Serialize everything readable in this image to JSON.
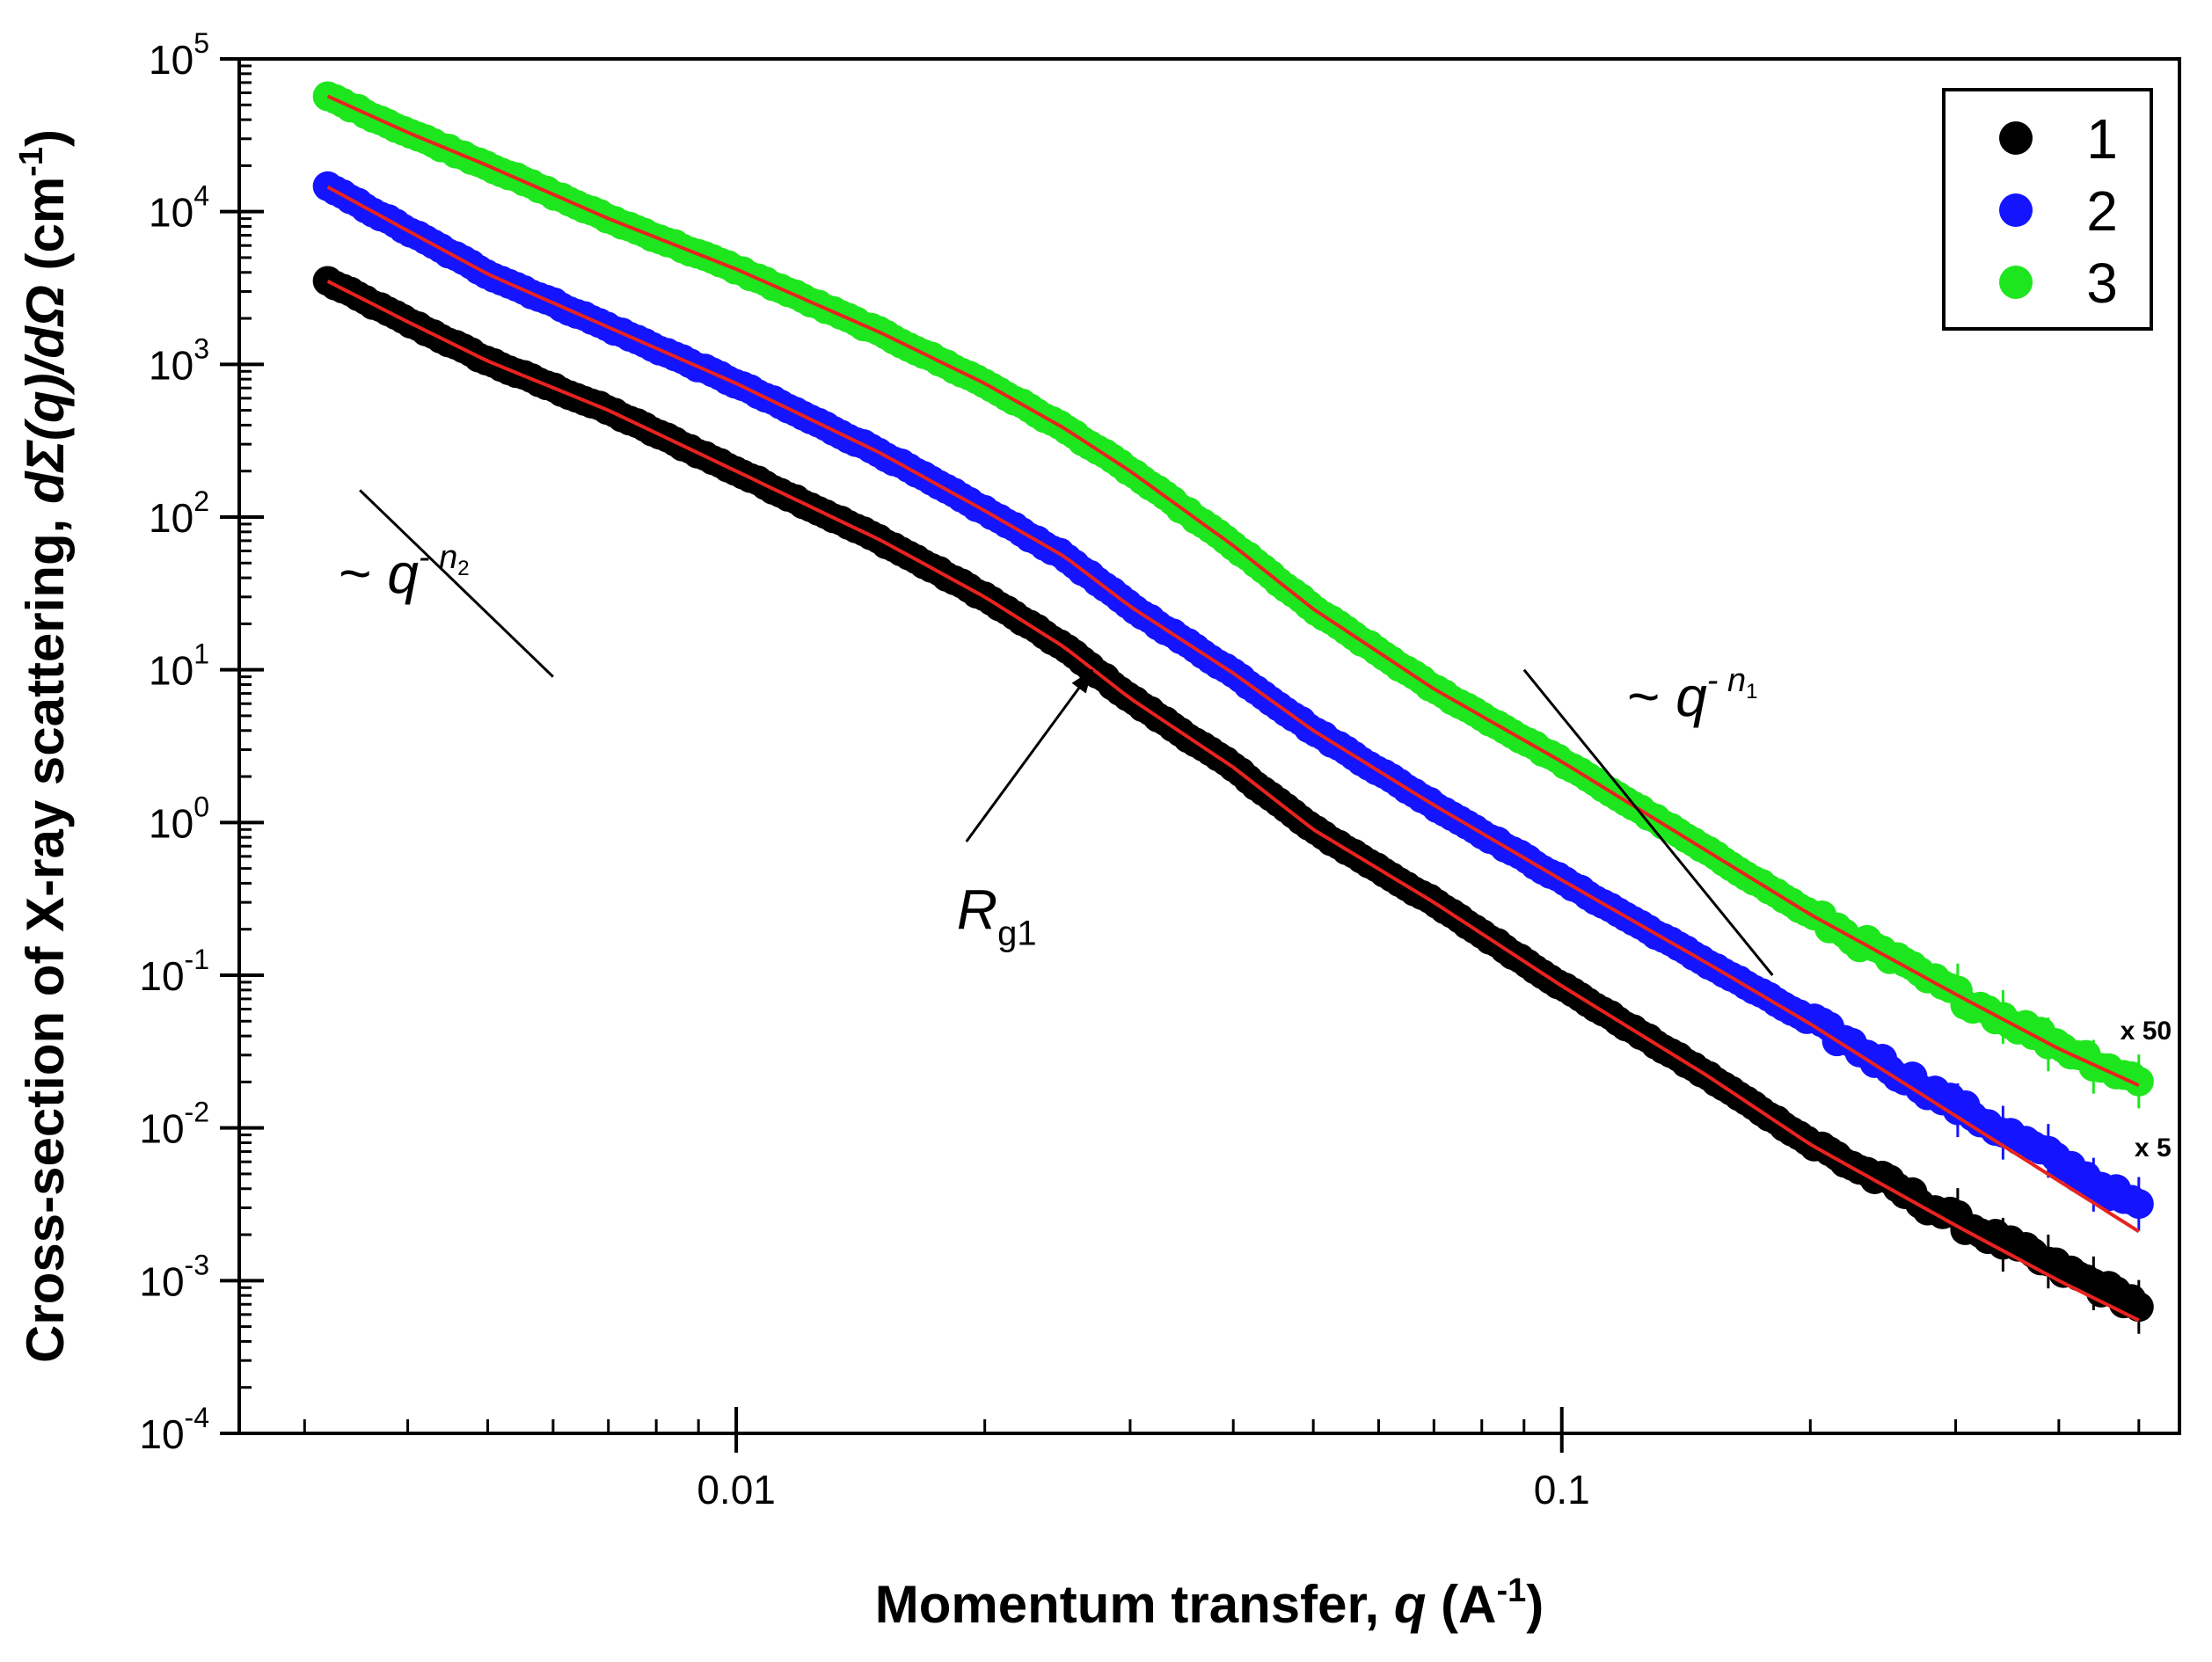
{
  "chart_data": {
    "type": "scatter",
    "xscale": "log",
    "yscale": "log",
    "xlim": [
      0.0025,
      0.56
    ],
    "ylim": [
      0.0001,
      100000
    ],
    "xlabel": {
      "prefix": "Momentum transfer, ",
      "var": "q",
      "unit_open": " (A",
      "unit_exp": "-1",
      "unit_close": ")"
    },
    "ylabel": {
      "prefix": "Cross-section of X-ray scattering, ",
      "var": "dΣ(q)/dΩ",
      "unit_open": " (cm",
      "unit_exp": "-1",
      "unit_close": ")"
    },
    "x_ticks": [
      {
        "value": 0.01,
        "label": "0.01"
      },
      {
        "value": 0.1,
        "label": "0.1"
      }
    ],
    "y_ticks": [
      {
        "value": 0.0001,
        "base": "10",
        "exp": "-4"
      },
      {
        "value": 0.001,
        "base": "10",
        "exp": "-3"
      },
      {
        "value": 0.01,
        "base": "10",
        "exp": "-2"
      },
      {
        "value": 0.1,
        "base": "10",
        "exp": "-1"
      },
      {
        "value": 1,
        "base": "10",
        "exp": "0"
      },
      {
        "value": 10,
        "base": "10",
        "exp": "1"
      },
      {
        "value": 100,
        "base": "10",
        "exp": "2"
      },
      {
        "value": 1000,
        "base": "10",
        "exp": "3"
      },
      {
        "value": 10000,
        "base": "10",
        "exp": "4"
      },
      {
        "value": 100000,
        "base": "10",
        "exp": "5"
      }
    ],
    "grid": false,
    "legend_position": "top-right",
    "fit_color": "#e8231f",
    "series": [
      {
        "name": "1",
        "color": "#000000",
        "x": [
          0.0032,
          0.004,
          0.005,
          0.007,
          0.01,
          0.015,
          0.02,
          0.025,
          0.03,
          0.04,
          0.05,
          0.07,
          0.1,
          0.15,
          0.2,
          0.3,
          0.4,
          0.5
        ],
        "y": [
          3500,
          1900,
          1050,
          500,
          200,
          70,
          30,
          14,
          6.5,
          2.3,
          0.9,
          0.3,
          0.085,
          0.022,
          0.008,
          0.0025,
          0.0012,
          0.0007
        ],
        "fit_y": [
          3500,
          1900,
          1050,
          500,
          200,
          70,
          30,
          14,
          6.5,
          2.3,
          0.9,
          0.3,
          0.085,
          0.022,
          0.0078,
          0.0023,
          0.001,
          0.00055
        ]
      },
      {
        "name": "2",
        "color": "#1414ff",
        "x": [
          0.0032,
          0.004,
          0.005,
          0.007,
          0.01,
          0.015,
          0.02,
          0.025,
          0.03,
          0.04,
          0.05,
          0.07,
          0.1,
          0.15,
          0.2,
          0.3,
          0.4,
          0.5
        ],
        "y": [
          14500,
          7500,
          3900,
          1750,
          750,
          260,
          110,
          55,
          26,
          9.5,
          4,
          1.3,
          0.42,
          0.12,
          0.05,
          0.014,
          0.006,
          0.003
        ],
        "fit_y": [
          14500,
          7500,
          3900,
          1750,
          750,
          260,
          110,
          55,
          26,
          9.5,
          4,
          1.3,
          0.42,
          0.12,
          0.048,
          0.012,
          0.0045,
          0.0021
        ]
      },
      {
        "name": "3",
        "color": "#1ee61e",
        "x": [
          0.0032,
          0.004,
          0.005,
          0.007,
          0.01,
          0.015,
          0.02,
          0.025,
          0.03,
          0.04,
          0.05,
          0.07,
          0.1,
          0.15,
          0.2,
          0.3,
          0.4,
          0.5
        ],
        "y": [
          57000,
          33000,
          20000,
          9000,
          4200,
          1600,
          750,
          380,
          200,
          65,
          25,
          7.5,
          2.5,
          0.65,
          0.25,
          0.075,
          0.035,
          0.02
        ],
        "fit_y": [
          57000,
          33000,
          20000,
          9000,
          4200,
          1600,
          750,
          380,
          200,
          65,
          25,
          7.5,
          2.5,
          0.65,
          0.25,
          0.075,
          0.033,
          0.019
        ]
      }
    ],
    "annotations": {
      "slope_low": {
        "line": {
          "x1": 0.0035,
          "y1": 150,
          "x2": 0.006,
          "y2": 9
        },
        "text_prefix": "~ ",
        "text_var": "q",
        "text_sup": "- n",
        "text_sub": "2",
        "at": {
          "x": 0.0033,
          "y": 32
        }
      },
      "slope_high": {
        "line": {
          "x1": 0.09,
          "y1": 10,
          "x2": 0.18,
          "y2": 0.1
        },
        "text_prefix": "~ ",
        "text_var": "q",
        "text_sup": "- n",
        "text_sub": "1",
        "at": {
          "x": 0.12,
          "y": 5
        }
      },
      "rg": {
        "arrow_from": {
          "x": 0.019,
          "y": 0.75
        },
        "arrow_to": {
          "x": 0.027,
          "y": 10
        },
        "text_var": "R",
        "text_sub": "g1",
        "at": {
          "x": 0.0185,
          "y": 0.2
        }
      },
      "scale_labels": [
        {
          "text": "x 50",
          "x": 0.51,
          "y": 0.038
        },
        {
          "text": "x 5",
          "x": 0.52,
          "y": 0.0065
        }
      ]
    }
  }
}
